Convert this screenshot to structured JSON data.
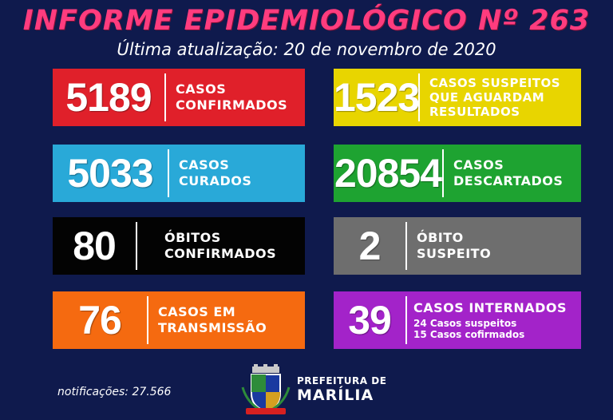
{
  "header": {
    "title": "INFORME EPIDEMIOLÓGICO Nº 263",
    "subtitle": "Última atualização: 20 de novembro de 2020"
  },
  "cards": [
    {
      "value": "5189",
      "label1": "CASOS",
      "label2": "CONFIRMADOS",
      "color": "#e0202a"
    },
    {
      "value": "1523",
      "label1": "CASOS SUSPEITOS",
      "label2": "QUE AGUARDAM",
      "label3": "RESULTADOS",
      "color": "#e8d500"
    },
    {
      "value": "5033",
      "label1": "CASOS",
      "label2": "CURADOS",
      "color": "#29a9d8"
    },
    {
      "value": "20854",
      "label1": "CASOS",
      "label2": "DESCARTADOS",
      "color": "#1ea331"
    },
    {
      "value": "80",
      "label1": "ÓBITOS",
      "label2": "CONFIRMADOS",
      "color": "#030303"
    },
    {
      "value": "2",
      "label1": "ÓBITO",
      "label2": "SUSPEITO",
      "color": "#6e6e6e"
    },
    {
      "value": "76",
      "label1": "CASOS EM",
      "label2": "TRANSMISSÃO",
      "color": "#f56a10"
    },
    {
      "value": "39",
      "label1": "CASOS INTERNADOS",
      "sub1": "24 Casos suspeitos",
      "sub2": "15 Casos cofirmados",
      "color": "#a323c9"
    }
  ],
  "footer": {
    "notifications": "notificações: 27.566",
    "prefeitura_line1": "PREFEITURA DE",
    "prefeitura_line2": "MARÍLIA",
    "logo_icon": "coat-of-arms-icon"
  }
}
